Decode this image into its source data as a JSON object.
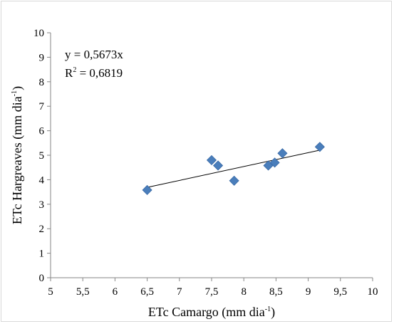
{
  "chart_data": {
    "type": "scatter",
    "xlabel": "ETc Camargo (mm dia",
    "xlabel_sup": "-1",
    "xlabel_end": ")",
    "ylabel": "ETc Hargreaves (mm dia",
    "ylabel_sup": "-1",
    "ylabel_end": ")",
    "xlim": [
      5,
      10
    ],
    "ylim": [
      0,
      10
    ],
    "x_ticks": [
      "5",
      "5,5",
      "6",
      "6,5",
      "7",
      "7,5",
      "8",
      "8,5",
      "9",
      "9,5",
      "10"
    ],
    "y_ticks": [
      "0",
      "1",
      "2",
      "3",
      "4",
      "5",
      "6",
      "7",
      "8",
      "9",
      "10"
    ],
    "grid": false,
    "points": [
      {
        "x": 6.5,
        "y": 3.58
      },
      {
        "x": 7.5,
        "y": 4.8
      },
      {
        "x": 7.6,
        "y": 4.58
      },
      {
        "x": 7.85,
        "y": 3.96
      },
      {
        "x": 8.38,
        "y": 4.58
      },
      {
        "x": 8.48,
        "y": 4.7
      },
      {
        "x": 8.6,
        "y": 5.08
      },
      {
        "x": 9.18,
        "y": 5.34
      }
    ],
    "trendline": {
      "x_start": 6.5,
      "x_end": 9.18,
      "slope": 0.5673
    },
    "marker_color": "#4a7ebb",
    "equation_text": "y = 0,5673x",
    "r2_prefix": "R",
    "r2_sup": "2",
    "r2_value": " = 0,6819"
  }
}
